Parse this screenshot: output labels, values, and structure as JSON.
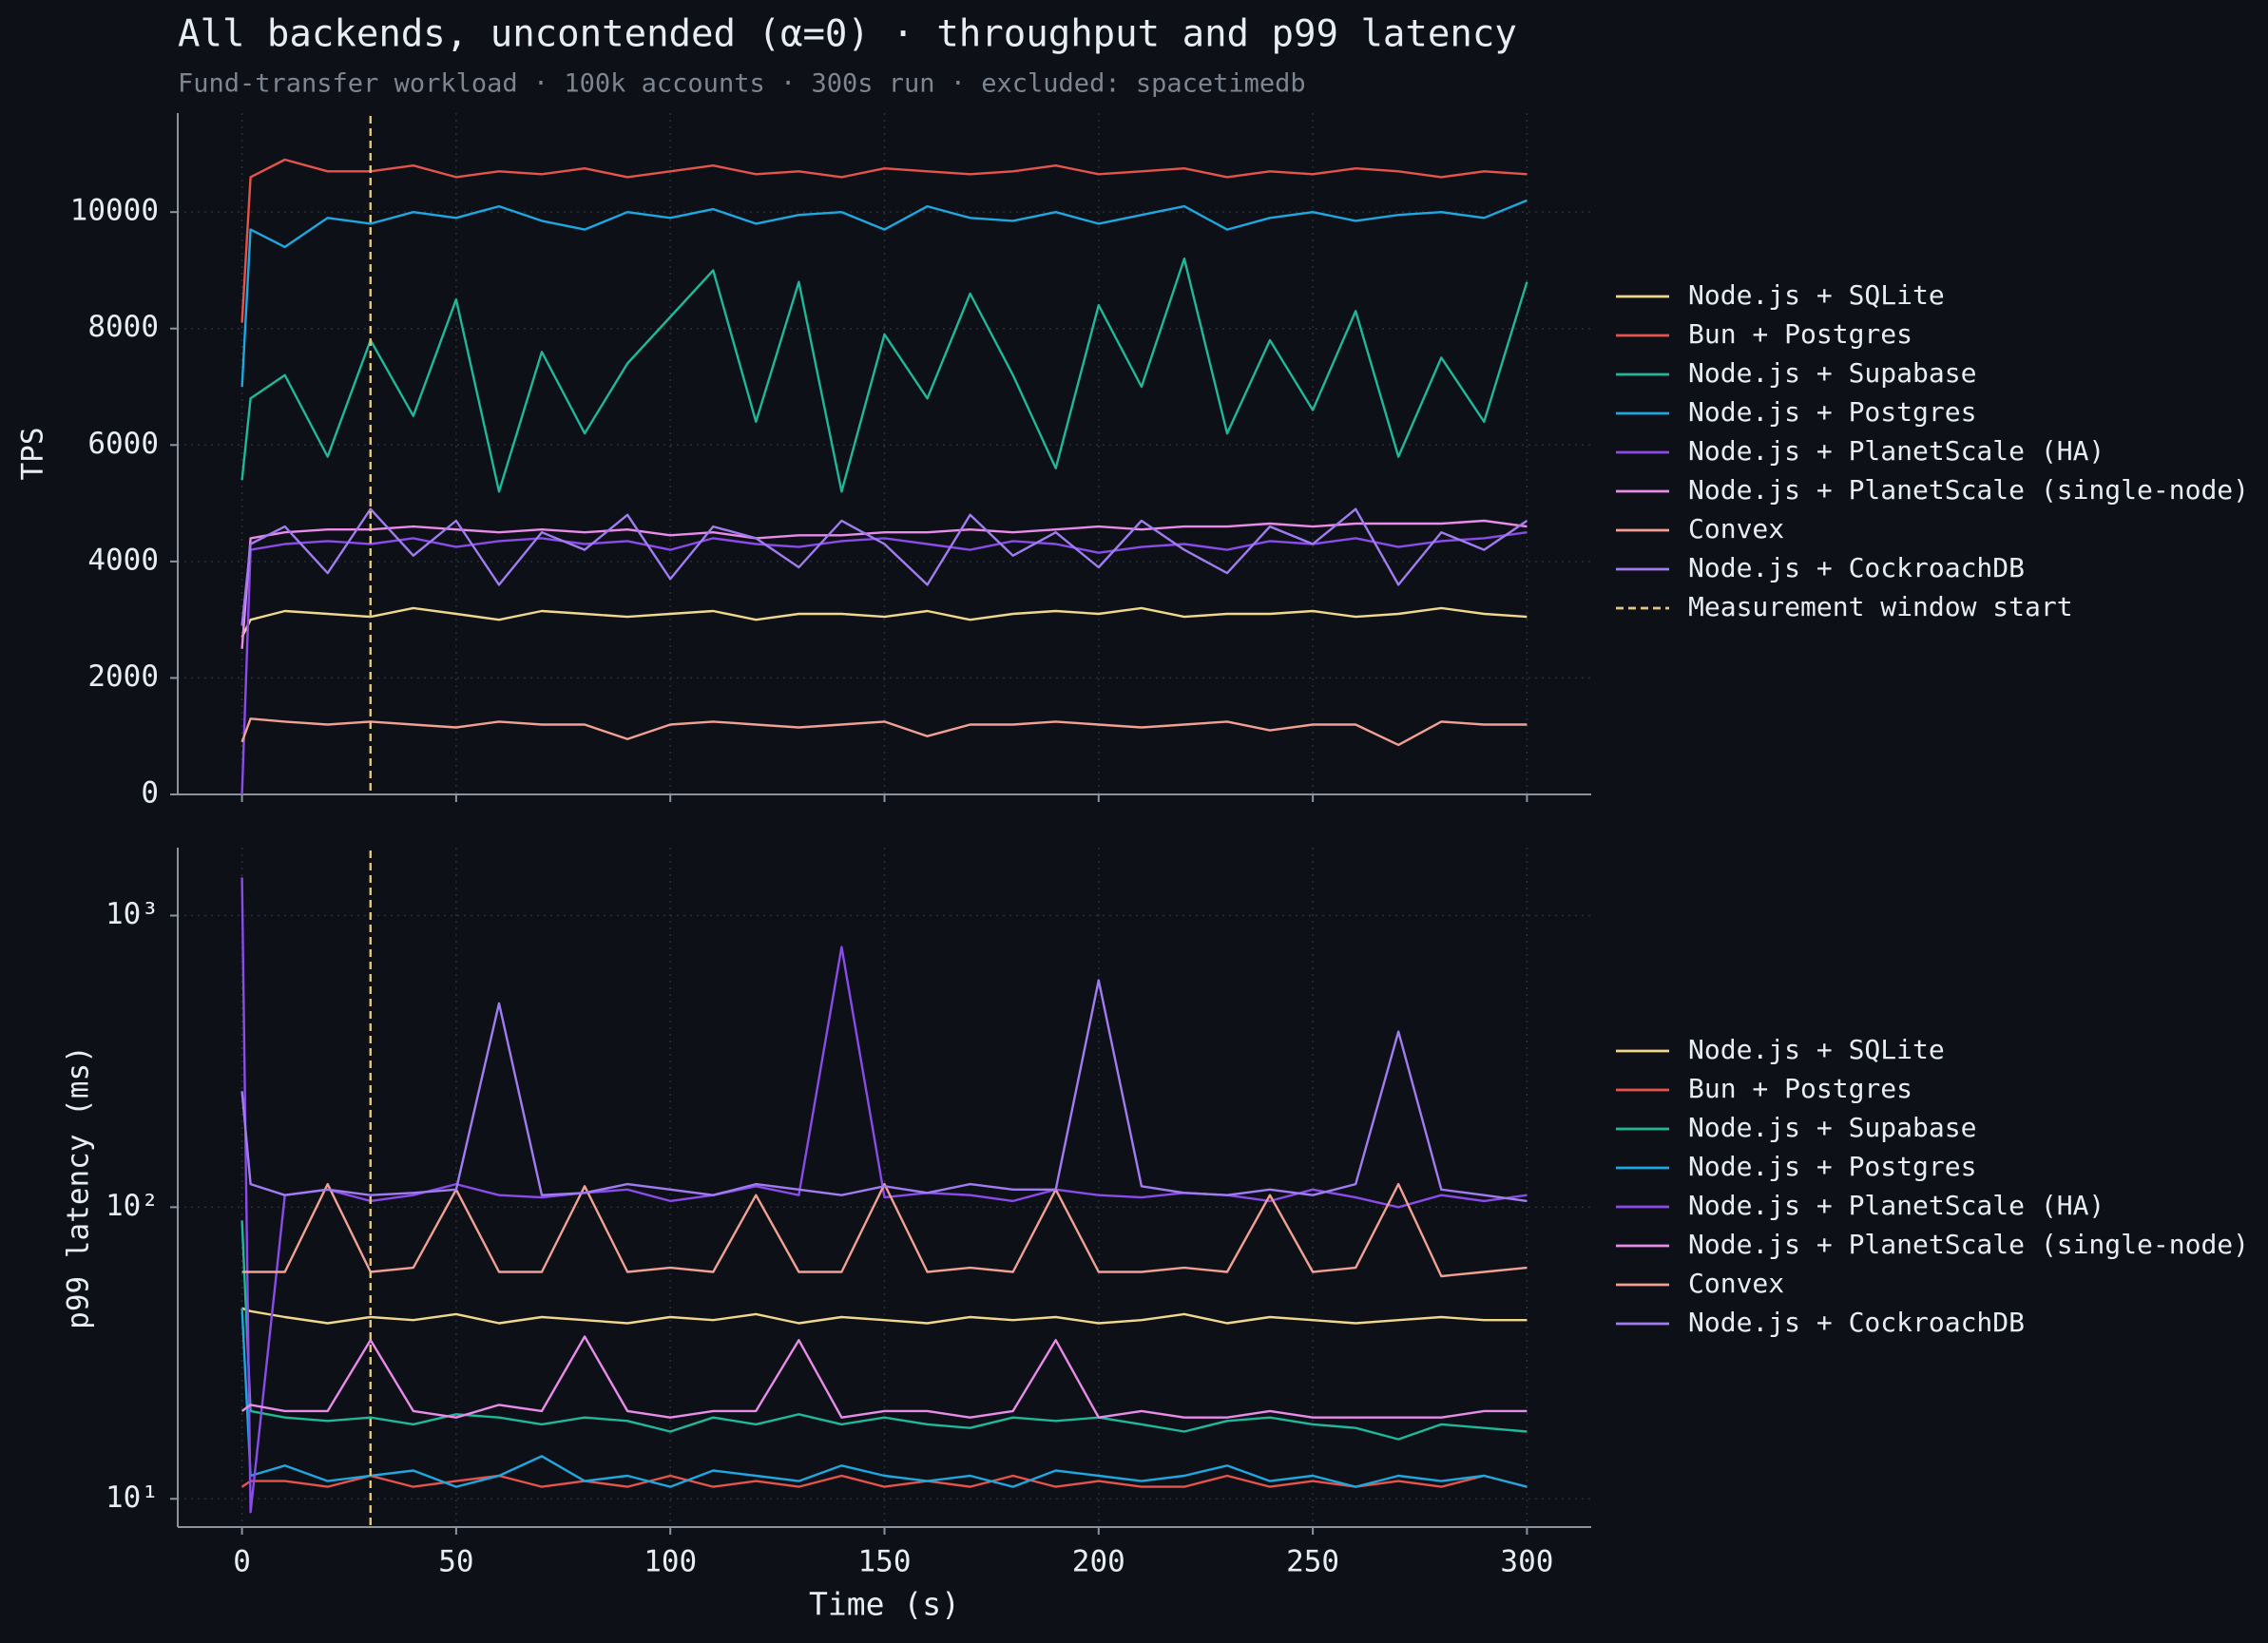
{
  "chart_data": [
    {
      "type": "line",
      "title": "All backends, uncontended (α=0) · throughput and p99 latency",
      "subtitle": "Fund-transfer workload · 100k accounts · 300s run · excluded: spacetimedb",
      "y_label": "TPS",
      "log_y": false,
      "grid": true,
      "legend": "right",
      "xlim": [
        -15,
        315
      ],
      "xticks": [
        0,
        50,
        100,
        150,
        200,
        250,
        300
      ],
      "ylim": [
        0,
        11700
      ],
      "yticks": [
        0,
        2000,
        4000,
        6000,
        8000,
        10000
      ],
      "vline": {
        "x": 30,
        "name": "Measurement window start",
        "color": "#e3c77f"
      },
      "x": [
        0,
        2,
        10,
        20,
        30,
        40,
        50,
        60,
        70,
        80,
        90,
        100,
        110,
        120,
        130,
        140,
        150,
        160,
        170,
        180,
        190,
        200,
        210,
        220,
        230,
        240,
        250,
        260,
        270,
        280,
        290,
        300
      ],
      "series": [
        {
          "name": "Node.js + SQLite",
          "color": "#f0d78c",
          "values": [
            2700,
            3000,
            3150,
            3100,
            3050,
            3200,
            3100,
            3000,
            3150,
            3100,
            3050,
            3100,
            3150,
            3000,
            3100,
            3100,
            3050,
            3150,
            3000,
            3100,
            3150,
            3100,
            3200,
            3050,
            3100,
            3100,
            3150,
            3050,
            3100,
            3200,
            3100,
            3050
          ]
        },
        {
          "name": "Bun + Postgres",
          "color": "#e5534b",
          "values": [
            8100,
            10600,
            10900,
            10700,
            10700,
            10800,
            10600,
            10700,
            10650,
            10750,
            10600,
            10700,
            10800,
            10650,
            10700,
            10600,
            10750,
            10700,
            10650,
            10700,
            10800,
            10650,
            10700,
            10750,
            10600,
            10700,
            10650,
            10750,
            10700,
            10600,
            10700,
            10650
          ]
        },
        {
          "name": "Node.js + Supabase",
          "color": "#1fb89a",
          "values": [
            5400,
            6800,
            7200,
            5800,
            7800,
            6500,
            8500,
            5200,
            7600,
            6200,
            7400,
            8200,
            9000,
            6400,
            8800,
            5200,
            7900,
            6800,
            8600,
            7200,
            5600,
            8400,
            7000,
            9200,
            6200,
            7800,
            6600,
            8300,
            5800,
            7500,
            6400,
            8800
          ]
        },
        {
          "name": "Node.js + Postgres",
          "color": "#1ea7e0",
          "values": [
            7000,
            9700,
            9400,
            9900,
            9800,
            10000,
            9900,
            10100,
            9850,
            9700,
            10000,
            9900,
            10050,
            9800,
            9950,
            10000,
            9700,
            10100,
            9900,
            9850,
            10000,
            9800,
            9950,
            10100,
            9700,
            9900,
            10000,
            9850,
            9950,
            10000,
            9900,
            10200
          ]
        },
        {
          "name": "Node.js + PlanetScale (HA)",
          "color": "#8a4be8",
          "values": [
            0,
            4200,
            4300,
            4350,
            4300,
            4400,
            4250,
            4350,
            4400,
            4300,
            4350,
            4200,
            4400,
            4300,
            4250,
            4350,
            4400,
            4300,
            4200,
            4350,
            4300,
            4150,
            4250,
            4300,
            4200,
            4350,
            4300,
            4400,
            4250,
            4350,
            4400,
            4500
          ]
        },
        {
          "name": "Node.js + PlanetScale (single-node)",
          "color": "#e98be8",
          "values": [
            2500,
            4400,
            4500,
            4550,
            4550,
            4600,
            4550,
            4500,
            4550,
            4500,
            4550,
            4450,
            4500,
            4400,
            4450,
            4450,
            4500,
            4500,
            4550,
            4500,
            4550,
            4600,
            4550,
            4600,
            4600,
            4650,
            4600,
            4650,
            4650,
            4650,
            4700,
            4600
          ]
        },
        {
          "name": "Convex",
          "color": "#f2a093",
          "values": [
            900,
            1300,
            1250,
            1200,
            1250,
            1200,
            1150,
            1250,
            1200,
            1200,
            950,
            1200,
            1250,
            1200,
            1150,
            1200,
            1250,
            1000,
            1200,
            1200,
            1250,
            1200,
            1150,
            1200,
            1250,
            1100,
            1200,
            1200,
            850,
            1250,
            1200,
            1200
          ]
        },
        {
          "name": "Node.js + CockroachDB",
          "color": "#a07cf0",
          "values": [
            2900,
            4300,
            4600,
            3800,
            4900,
            4100,
            4700,
            3600,
            4500,
            4200,
            4800,
            3700,
            4600,
            4400,
            3900,
            4700,
            4300,
            3600,
            4800,
            4100,
            4500,
            3900,
            4700,
            4200,
            3800,
            4600,
            4300,
            4900,
            3600,
            4500,
            4200,
            4700
          ]
        }
      ]
    },
    {
      "type": "line",
      "y_label": "p99 latency (ms)",
      "x_label": "Time (s)",
      "log_y": true,
      "grid": true,
      "legend": "right",
      "xlim": [
        -15,
        315
      ],
      "xticks": [
        0,
        50,
        100,
        150,
        200,
        250,
        300
      ],
      "ylim": [
        8,
        1710
      ],
      "yticks": [
        {
          "value": 10,
          "label": "10¹"
        },
        {
          "value": 100,
          "label": "10²"
        },
        {
          "value": 1000,
          "label": "10³"
        }
      ],
      "vline": {
        "x": 30,
        "color": "#e3c77f"
      },
      "x": [
        0,
        2,
        10,
        20,
        30,
        40,
        50,
        60,
        70,
        80,
        90,
        100,
        110,
        120,
        130,
        140,
        150,
        160,
        170,
        180,
        190,
        200,
        210,
        220,
        230,
        240,
        250,
        260,
        270,
        280,
        290,
        300
      ],
      "series": [
        {
          "name": "Node.js + SQLite",
          "color": "#f0d78c",
          "values": [
            45,
            44,
            42,
            40,
            42,
            41,
            43,
            40,
            42,
            41,
            40,
            42,
            41,
            43,
            40,
            42,
            41,
            40,
            42,
            41,
            42,
            40,
            41,
            43,
            40,
            42,
            41,
            40,
            41,
            42,
            41,
            41
          ]
        },
        {
          "name": "Bun + Postgres",
          "color": "#e5534b",
          "values": [
            11,
            11.5,
            11.5,
            11,
            12,
            11,
            11.5,
            12,
            11,
            11.5,
            11,
            12,
            11,
            11.5,
            11,
            12,
            11,
            11.5,
            11,
            12,
            11,
            11.5,
            11,
            11,
            12,
            11,
            11.5,
            11,
            11.5,
            11,
            12,
            11
          ]
        },
        {
          "name": "Node.js + Supabase",
          "color": "#1fb89a",
          "values": [
            90,
            20,
            19,
            18.5,
            19,
            18,
            19.5,
            19,
            18,
            19,
            18.5,
            17,
            19,
            18,
            19.5,
            18,
            19,
            18,
            17.5,
            19,
            18.5,
            19,
            18,
            17,
            18.5,
            19,
            18,
            17.5,
            16,
            18,
            17.5,
            17
          ]
        },
        {
          "name": "Node.js + Postgres",
          "color": "#1ea7e0",
          "values": [
            45,
            12,
            13,
            11.5,
            12,
            12.5,
            11,
            12,
            14,
            11.5,
            12,
            11,
            12.5,
            12,
            11.5,
            13,
            12,
            11.5,
            12,
            11,
            12.5,
            12,
            11.5,
            12,
            13,
            11.5,
            12,
            11,
            12,
            11.5,
            12,
            11
          ]
        },
        {
          "name": "Node.js + PlanetScale (HA)",
          "color": "#8a4be8",
          "values": [
            1350,
            9,
            110,
            115,
            105,
            110,
            120,
            110,
            108,
            112,
            115,
            105,
            110,
            118,
            110,
            780,
            108,
            112,
            110,
            105,
            115,
            110,
            108,
            112,
            110,
            105,
            115,
            108,
            100,
            110,
            105,
            110
          ]
        },
        {
          "name": "Node.js + PlanetScale (single-node)",
          "color": "#e98be8",
          "values": [
            20,
            21,
            20,
            20,
            35,
            20,
            19,
            21,
            20,
            36,
            20,
            19,
            20,
            20,
            35,
            19,
            20,
            20,
            19,
            20,
            35,
            19,
            20,
            19,
            19,
            20,
            19,
            19,
            19,
            19,
            20,
            20
          ]
        },
        {
          "name": "Convex",
          "color": "#f2a093",
          "values": [
            60,
            60,
            60,
            120,
            60,
            62,
            115,
            60,
            60,
            118,
            60,
            62,
            60,
            110,
            60,
            60,
            120,
            60,
            62,
            60,
            115,
            60,
            60,
            62,
            60,
            110,
            60,
            62,
            120,
            58,
            60,
            62
          ]
        },
        {
          "name": "Node.js + CockroachDB",
          "color": "#a07cf0",
          "values": [
            250,
            120,
            110,
            115,
            110,
            112,
            115,
            500,
            110,
            112,
            120,
            115,
            110,
            120,
            115,
            110,
            118,
            112,
            120,
            115,
            115,
            600,
            118,
            112,
            110,
            115,
            110,
            120,
            400,
            115,
            110,
            105
          ]
        }
      ]
    }
  ]
}
